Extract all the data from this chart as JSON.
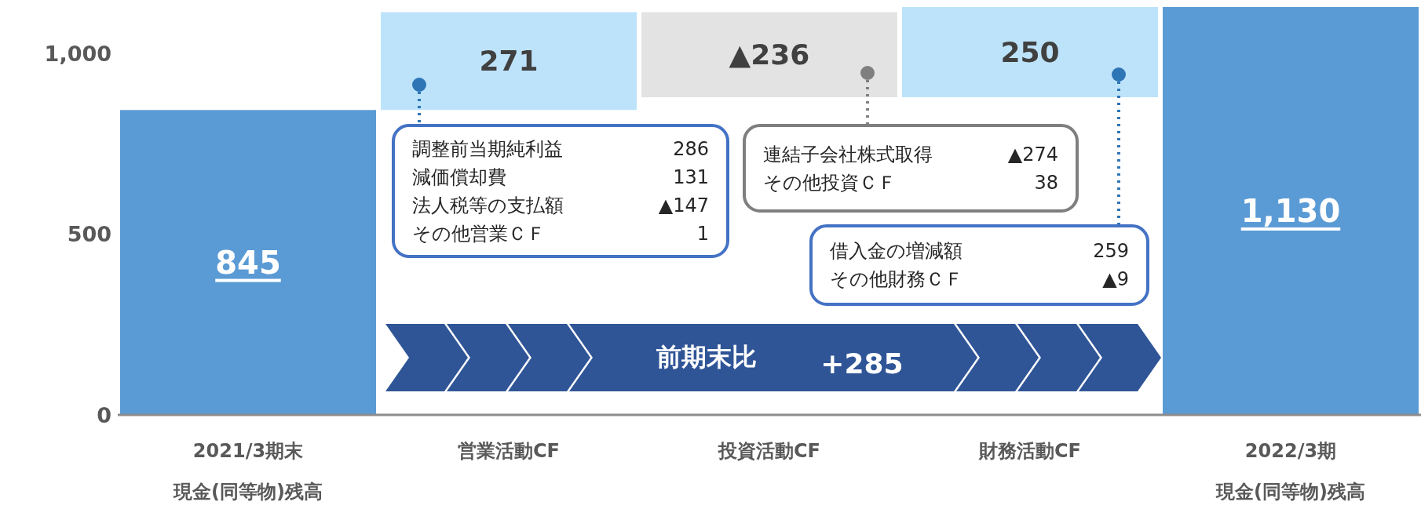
{
  "chart_data": {
    "type": "bar",
    "categories": [
      "2021/3期末現金(同等物)残高",
      "営業活動CF",
      "投資活動CF",
      "財務活動CF",
      "2022/3期現金(同等物)残高"
    ],
    "values": [
      845,
      271,
      -236,
      250,
      1130
    ],
    "base": [
      0,
      845,
      1116,
      880,
      0
    ],
    "colors": [
      "#5b9bd5",
      "#bde3fb",
      "#e3e3e3",
      "#bde3fb",
      "#5b9bd5"
    ],
    "value_labels": [
      "845",
      "271",
      "▲236",
      "250",
      "1,130"
    ],
    "ylim": [
      0,
      1130
    ],
    "yticks": [
      0,
      500,
      {
        "value": 1000,
        "label": "1,000"
      }
    ],
    "annotations": [
      "調整前当期純利益 286\n減価償却費 131\n法人税等の支払額 ▲147\nその他営業ＣＦ 1",
      "連結子会社株式取得 ▲274\nその他投資ＣＦ 38",
      "借入金の増減額 259\nその他財務ＣＦ ▲9",
      "前期末比",
      "+285"
    ]
  }
}
